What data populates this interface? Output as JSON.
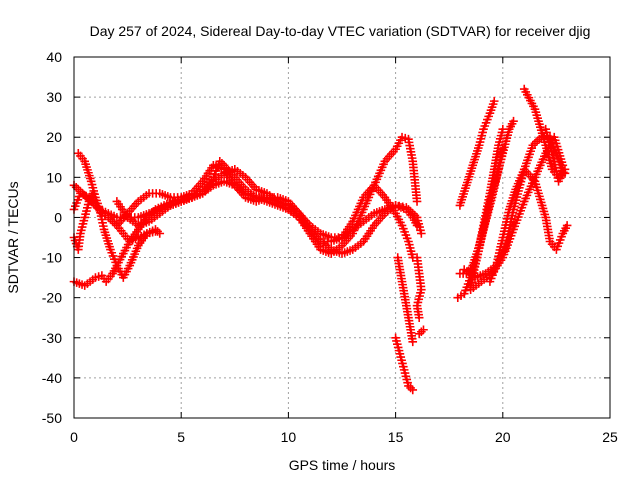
{
  "chart_data": {
    "type": "scatter",
    "title": "Day 257 of 2024, Sidereal Day-to-day VTEC variation (SDTVAR) for receiver djig",
    "xlabel": "GPS time / hours",
    "ylabel": "SDTVAR / TECUs",
    "xlim": [
      0,
      25
    ],
    "ylim": [
      -50,
      40
    ],
    "xticks": [
      0,
      5,
      10,
      15,
      20,
      25
    ],
    "yticks": [
      -50,
      -40,
      -30,
      -20,
      -10,
      0,
      10,
      20,
      30,
      40
    ],
    "xtick_labels": [
      "0",
      "5",
      "10",
      "15",
      "20",
      "25"
    ],
    "ytick_labels": [
      "-50",
      "-40",
      "-30",
      "-20",
      "-10",
      "0",
      "10",
      "20",
      "30",
      "40"
    ],
    "grid": true,
    "legend": "none",
    "marker": "plus",
    "color": "#ff0000",
    "series": [
      {
        "points": [
          [
            0,
            -5
          ],
          [
            0.2,
            -8
          ],
          [
            0.3,
            -4
          ],
          [
            0.5,
            0
          ],
          [
            0.7,
            4
          ],
          [
            0.9,
            6
          ]
        ]
      },
      {
        "points": [
          [
            0,
            -16
          ],
          [
            0.5,
            -17
          ],
          [
            1,
            -15
          ],
          [
            1.3,
            -14.5
          ],
          [
            1.5,
            -16
          ],
          [
            1.8,
            -14
          ],
          [
            2,
            -12
          ],
          [
            2.3,
            -9
          ],
          [
            2.6,
            -6
          ],
          [
            3,
            -3
          ],
          [
            3.4,
            0
          ],
          [
            3.8,
            2
          ],
          [
            4.2,
            3
          ],
          [
            4.6,
            4
          ],
          [
            5,
            4.5
          ],
          [
            5.5,
            5
          ],
          [
            6,
            6
          ],
          [
            6.5,
            9
          ],
          [
            7,
            11
          ],
          [
            7.5,
            12
          ],
          [
            8,
            10
          ],
          [
            8.5,
            7
          ],
          [
            9,
            6
          ],
          [
            9.5,
            4
          ],
          [
            10,
            2
          ],
          [
            10.5,
            0
          ],
          [
            11,
            -4
          ],
          [
            11.5,
            -8
          ],
          [
            12,
            -9
          ],
          [
            12.5,
            -7
          ],
          [
            13,
            -4
          ],
          [
            13.5,
            2
          ],
          [
            14,
            8
          ],
          [
            14.5,
            14
          ],
          [
            15,
            17
          ],
          [
            15.3,
            20
          ],
          [
            15.6,
            19.5
          ],
          [
            15.8,
            14
          ],
          [
            16,
            4
          ]
        ]
      },
      {
        "points": [
          [
            0.2,
            16
          ],
          [
            0.5,
            14
          ],
          [
            0.8,
            9
          ],
          [
            1,
            5
          ],
          [
            1.2,
            2
          ],
          [
            1.4,
            -3
          ],
          [
            1.7,
            -8
          ],
          [
            2,
            -12
          ],
          [
            2.3,
            -15
          ],
          [
            2.6,
            -12
          ],
          [
            3,
            -7
          ],
          [
            3.4,
            -4
          ],
          [
            3.8,
            -3.5
          ]
        ]
      },
      {
        "points": [
          [
            0,
            2
          ],
          [
            0.3,
            6
          ],
          [
            0.7,
            5
          ],
          [
            1,
            3
          ],
          [
            1.3,
            1
          ],
          [
            1.6,
            0
          ],
          [
            2,
            -2
          ],
          [
            2.3,
            -4
          ],
          [
            2.6,
            -6
          ],
          [
            3,
            -5
          ],
          [
            3.4,
            -4
          ],
          [
            3.8,
            -3
          ],
          [
            4,
            -4
          ]
        ]
      },
      {
        "points": [
          [
            0,
            8
          ],
          [
            0.4,
            6
          ],
          [
            0.8,
            4
          ],
          [
            1.2,
            2
          ],
          [
            1.6,
            1
          ],
          [
            2,
            0
          ],
          [
            2.5,
            0
          ],
          [
            3,
            0
          ],
          [
            3.5,
            1
          ],
          [
            4,
            2
          ],
          [
            4.5,
            3
          ],
          [
            5,
            4
          ],
          [
            5.5,
            5
          ],
          [
            6,
            6
          ],
          [
            6.5,
            8
          ],
          [
            7,
            9
          ],
          [
            7.5,
            8
          ],
          [
            8,
            6
          ],
          [
            8.5,
            5
          ],
          [
            9,
            4
          ],
          [
            9.5,
            3
          ],
          [
            10,
            2
          ],
          [
            10.5,
            0
          ],
          [
            11,
            -3
          ],
          [
            11.5,
            -6
          ],
          [
            12,
            -8
          ],
          [
            12.5,
            -9
          ],
          [
            13,
            -8
          ],
          [
            13.5,
            -6
          ],
          [
            14,
            -2
          ],
          [
            14.5,
            1
          ],
          [
            15,
            3
          ],
          [
            15.5,
            2
          ],
          [
            15.8,
            0
          ],
          [
            16,
            -2
          ]
        ]
      },
      {
        "points": [
          [
            2,
            4
          ],
          [
            2.5,
            0
          ],
          [
            3,
            -2
          ],
          [
            3.5,
            -1
          ],
          [
            4,
            1
          ],
          [
            4.5,
            3
          ],
          [
            5,
            4
          ],
          [
            5.5,
            5
          ],
          [
            6,
            7
          ],
          [
            6.5,
            10
          ],
          [
            6.8,
            14
          ],
          [
            7,
            13
          ],
          [
            7.5,
            10
          ],
          [
            8,
            7
          ],
          [
            8.5,
            5
          ],
          [
            9,
            5
          ],
          [
            9.5,
            4
          ],
          [
            10,
            3
          ],
          [
            10.5,
            1
          ],
          [
            11,
            -2
          ],
          [
            11.5,
            -4
          ],
          [
            12,
            -5
          ],
          [
            12.5,
            -5
          ],
          [
            13,
            -3
          ],
          [
            13.5,
            -1
          ],
          [
            14,
            1
          ],
          [
            14.5,
            2
          ],
          [
            15,
            3
          ],
          [
            15.5,
            2.5
          ],
          [
            16,
            0
          ],
          [
            16.2,
            -4
          ]
        ]
      },
      {
        "points": [
          [
            2,
            -2
          ],
          [
            2.5,
            1
          ],
          [
            3,
            4
          ],
          [
            3.5,
            6
          ],
          [
            4,
            6
          ],
          [
            4.5,
            5
          ],
          [
            5,
            5
          ],
          [
            5.5,
            6
          ],
          [
            6,
            9
          ],
          [
            6.5,
            13
          ],
          [
            7,
            12
          ],
          [
            7.5,
            8
          ],
          [
            8,
            5
          ],
          [
            8.5,
            4
          ],
          [
            9,
            5
          ],
          [
            9.5,
            5
          ],
          [
            10,
            4
          ],
          [
            10.5,
            1
          ],
          [
            11,
            -3
          ],
          [
            11.5,
            -6
          ],
          [
            12,
            -6
          ],
          [
            12.5,
            -5
          ],
          [
            13,
            -1
          ],
          [
            13.5,
            5
          ],
          [
            14,
            8
          ],
          [
            14.5,
            5
          ],
          [
            15,
            1
          ],
          [
            15.3,
            -2
          ],
          [
            15.6,
            -6
          ],
          [
            15.8,
            -10
          ]
        ]
      },
      {
        "points": [
          [
            15,
            -30
          ],
          [
            15.2,
            -34
          ],
          [
            15.4,
            -38
          ],
          [
            15.6,
            -42
          ],
          [
            15.8,
            -43
          ]
        ]
      },
      {
        "points": [
          [
            15.1,
            -10
          ],
          [
            15.3,
            -16
          ],
          [
            15.5,
            -22
          ],
          [
            15.7,
            -28
          ],
          [
            15.8,
            -31
          ]
        ]
      },
      {
        "points": [
          [
            16,
            -10
          ],
          [
            16.1,
            -14
          ],
          [
            16.2,
            -18
          ],
          [
            16,
            -22
          ],
          [
            16.1,
            -25
          ]
        ]
      },
      {
        "points": [
          [
            16.3,
            -28
          ],
          [
            16.1,
            -29
          ]
        ]
      },
      {
        "points": [
          [
            18,
            3
          ],
          [
            18.3,
            8
          ],
          [
            18.6,
            13
          ],
          [
            18.9,
            18
          ],
          [
            19.1,
            22
          ],
          [
            19.4,
            26
          ],
          [
            19.6,
            29
          ]
        ]
      },
      {
        "points": [
          [
            17.9,
            -20
          ],
          [
            18.2,
            -19
          ],
          [
            18.5,
            -15
          ],
          [
            18.8,
            -10
          ],
          [
            19.1,
            -3
          ],
          [
            19.4,
            4
          ],
          [
            19.7,
            10
          ],
          [
            20,
            16
          ],
          [
            20.3,
            22
          ],
          [
            20.5,
            24
          ]
        ]
      },
      {
        "points": [
          [
            18,
            -14
          ],
          [
            18.3,
            -14
          ],
          [
            18.6,
            -12
          ],
          [
            18.9,
            -7
          ],
          [
            19.2,
            -1
          ],
          [
            19.5,
            5
          ],
          [
            19.8,
            12
          ],
          [
            20,
            17
          ]
        ]
      },
      {
        "points": [
          [
            18.5,
            -17
          ],
          [
            18.8,
            -10
          ],
          [
            19.1,
            -2
          ],
          [
            19.4,
            6
          ],
          [
            19.6,
            12
          ],
          [
            19.8,
            18
          ],
          [
            20,
            22
          ]
        ]
      },
      {
        "points": [
          [
            18.5,
            -18
          ],
          [
            19,
            -16
          ],
          [
            19.5,
            -14
          ],
          [
            20,
            -10
          ],
          [
            20.5,
            -3
          ],
          [
            21,
            4
          ],
          [
            21.5,
            10
          ],
          [
            22,
            16
          ],
          [
            22.4,
            20
          ],
          [
            22.8,
            13
          ]
        ]
      },
      {
        "points": [
          [
            18.2,
            -13
          ],
          [
            18.7,
            -15
          ],
          [
            19.2,
            -14
          ],
          [
            19.7,
            -12
          ],
          [
            20.1,
            -8
          ],
          [
            20.5,
            2
          ],
          [
            21,
            12
          ],
          [
            21.4,
            18
          ],
          [
            21.8,
            20
          ],
          [
            22.2,
            20
          ],
          [
            22.5,
            16
          ],
          [
            22.8,
            11
          ]
        ]
      },
      {
        "points": [
          [
            19.4,
            -16
          ],
          [
            19.7,
            -12
          ],
          [
            20,
            -5
          ],
          [
            20.3,
            2
          ],
          [
            20.6,
            7
          ],
          [
            21,
            12
          ],
          [
            21.5,
            9
          ],
          [
            22,
            0
          ],
          [
            22.2,
            -6
          ],
          [
            22.5,
            -8
          ],
          [
            22.8,
            -4
          ],
          [
            23,
            -2
          ]
        ]
      },
      {
        "points": [
          [
            21,
            32
          ],
          [
            21.5,
            27
          ],
          [
            22,
            18
          ],
          [
            22.3,
            12
          ],
          [
            22.6,
            10
          ],
          [
            22.9,
            11
          ]
        ]
      },
      {
        "points": [
          [
            22,
            22
          ],
          [
            22.2,
            18
          ],
          [
            22.4,
            14
          ],
          [
            22.6,
            9
          ],
          [
            22.9,
            12
          ]
        ]
      }
    ]
  }
}
